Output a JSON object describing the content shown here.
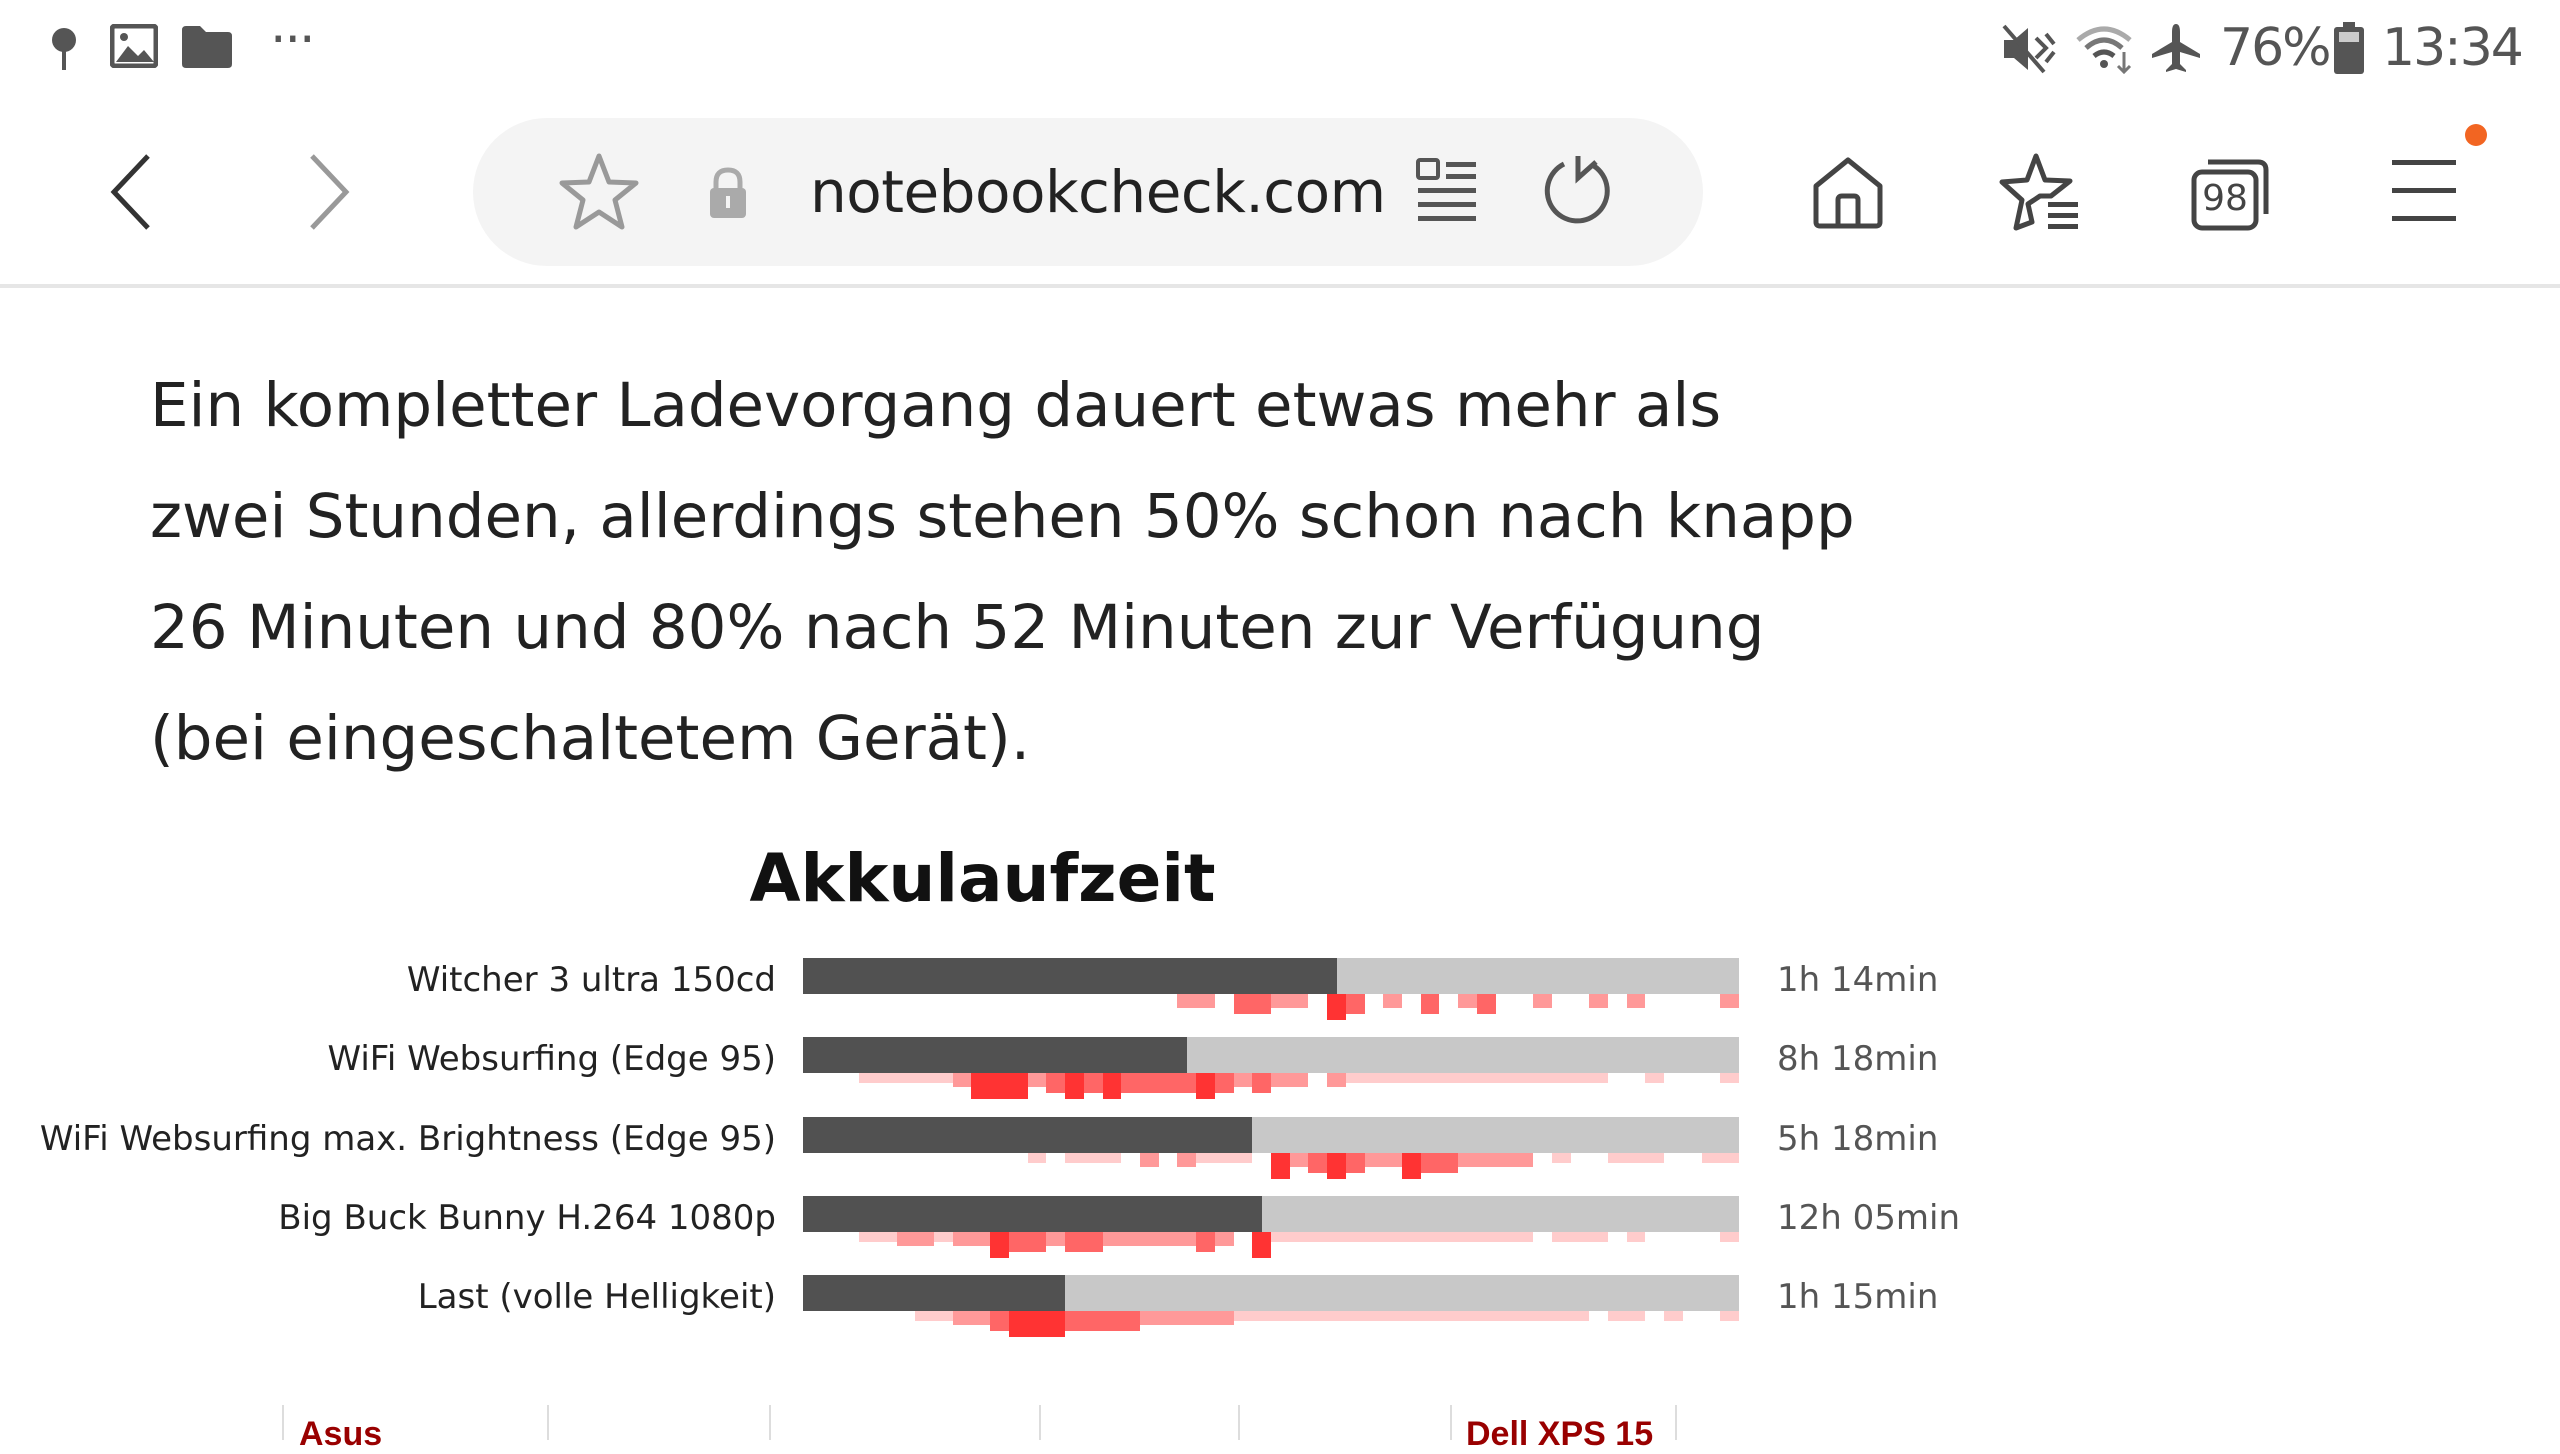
{
  "status_bar": {
    "battery": "76%",
    "time": "13:34",
    "icons": [
      "app-notification-icon",
      "gallery-icon",
      "folder-icon",
      "more-icon",
      "mute-icon",
      "wifi-icon",
      "airplane-icon",
      "battery-icon"
    ]
  },
  "toolbar": {
    "url": "notebookcheck.com",
    "tab_count": "98",
    "notification_dot_color": "#f26522"
  },
  "article": {
    "paragraph_lines": [
      "Ein kompletter Ladevorgang dauert etwas mehr als",
      "zwei Stunden, allerdings stehen 50% schon nach knapp",
      "26 Minuten und 80% nach 52 Minuten zur Verfügung",
      "(bei eingeschaltetem Gerät)."
    ]
  },
  "chart_data": {
    "type": "bar",
    "title": "Akkulaufzeit",
    "categories": [
      "Witcher 3 ultra 150cd",
      "WiFi Websurfing (Edge 95)",
      "WiFi Websurfing max. Brightness (Edge 95)",
      "Big Buck Bunny H.264 1080p",
      "Last (volle Helligkeit)"
    ],
    "value_labels": [
      "1h 14min",
      "8h 18min",
      "5h 18min",
      "12h 05min",
      "1h 15min"
    ],
    "relative_values": [
      0.57,
      0.41,
      0.48,
      0.49,
      0.28
    ],
    "colors": {
      "bar": "#515151",
      "track": "#c8c8c8",
      "distribution": [
        "#ffcccc",
        "#ff9999",
        "#ff6666",
        "#ff3333"
      ]
    },
    "distribution": [
      [
        [
          0.4,
          0.44,
          2
        ],
        [
          0.46,
          0.5,
          3
        ],
        [
          0.5,
          0.54,
          2
        ],
        [
          0.56,
          0.58,
          4
        ],
        [
          0.58,
          0.6,
          3
        ],
        [
          0.62,
          0.64,
          2
        ],
        [
          0.66,
          0.68,
          3
        ],
        [
          0.7,
          0.72,
          2
        ],
        [
          0.72,
          0.74,
          3
        ],
        [
          0.78,
          0.8,
          2
        ],
        [
          0.84,
          0.86,
          2
        ],
        [
          0.88,
          0.9,
          2
        ],
        [
          0.98,
          1.0,
          2
        ]
      ],
      [
        [
          0.06,
          0.16,
          1
        ],
        [
          0.16,
          0.18,
          2
        ],
        [
          0.18,
          0.24,
          4
        ],
        [
          0.24,
          0.26,
          2
        ],
        [
          0.26,
          0.28,
          3
        ],
        [
          0.28,
          0.3,
          4
        ],
        [
          0.3,
          0.32,
          3
        ],
        [
          0.32,
          0.34,
          4
        ],
        [
          0.34,
          0.42,
          3
        ],
        [
          0.42,
          0.44,
          4
        ],
        [
          0.44,
          0.46,
          3
        ],
        [
          0.46,
          0.48,
          2
        ],
        [
          0.48,
          0.5,
          3
        ],
        [
          0.5,
          0.54,
          2
        ],
        [
          0.56,
          0.58,
          2
        ],
        [
          0.58,
          0.86,
          1
        ],
        [
          0.9,
          0.92,
          1
        ],
        [
          0.98,
          1.0,
          1
        ]
      ],
      [
        [
          0.24,
          0.26,
          1
        ],
        [
          0.28,
          0.34,
          1
        ],
        [
          0.36,
          0.38,
          2
        ],
        [
          0.4,
          0.42,
          2
        ],
        [
          0.42,
          0.48,
          1
        ],
        [
          0.5,
          0.52,
          4
        ],
        [
          0.52,
          0.54,
          2
        ],
        [
          0.54,
          0.56,
          3
        ],
        [
          0.56,
          0.58,
          4
        ],
        [
          0.58,
          0.6,
          3
        ],
        [
          0.6,
          0.64,
          2
        ],
        [
          0.64,
          0.66,
          4
        ],
        [
          0.66,
          0.7,
          3
        ],
        [
          0.7,
          0.78,
          2
        ],
        [
          0.8,
          0.82,
          1
        ],
        [
          0.86,
          0.92,
          1
        ],
        [
          0.96,
          1.0,
          1
        ]
      ],
      [
        [
          0.06,
          0.1,
          1
        ],
        [
          0.1,
          0.14,
          2
        ],
        [
          0.14,
          0.16,
          1
        ],
        [
          0.16,
          0.2,
          2
        ],
        [
          0.2,
          0.22,
          4
        ],
        [
          0.22,
          0.26,
          3
        ],
        [
          0.26,
          0.28,
          2
        ],
        [
          0.28,
          0.32,
          3
        ],
        [
          0.32,
          0.42,
          2
        ],
        [
          0.42,
          0.44,
          3
        ],
        [
          0.44,
          0.46,
          2
        ],
        [
          0.48,
          0.5,
          4
        ],
        [
          0.5,
          0.78,
          1
        ],
        [
          0.8,
          0.86,
          1
        ],
        [
          0.88,
          0.9,
          1
        ],
        [
          0.98,
          1.0,
          1
        ]
      ],
      [
        [
          0.12,
          0.16,
          1
        ],
        [
          0.16,
          0.2,
          2
        ],
        [
          0.2,
          0.22,
          3
        ],
        [
          0.22,
          0.28,
          4
        ],
        [
          0.28,
          0.36,
          3
        ],
        [
          0.36,
          0.46,
          2
        ],
        [
          0.46,
          0.84,
          1
        ],
        [
          0.86,
          0.9,
          1
        ],
        [
          0.92,
          0.94,
          1
        ],
        [
          0.98,
          1.0,
          1
        ]
      ]
    ]
  },
  "comparison_table": {
    "brands": [
      "Asus",
      "Dell XPS 15"
    ],
    "brand_color": "#990000"
  }
}
